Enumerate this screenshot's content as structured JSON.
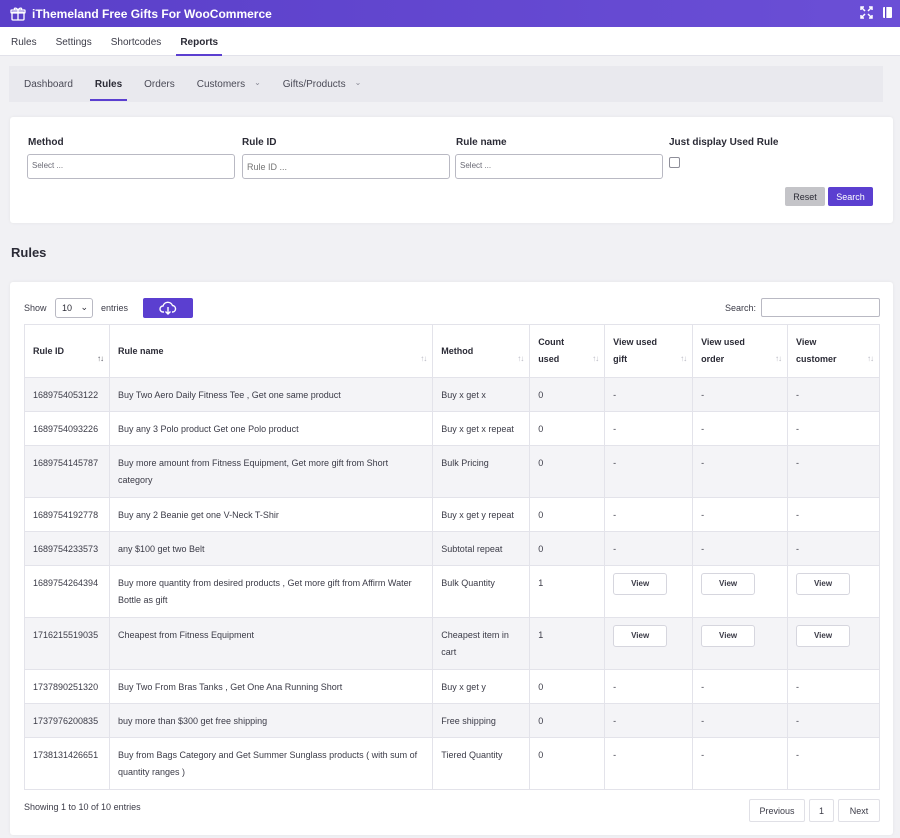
{
  "app": {
    "title": "iThemeland Free Gifts For WooCommerce"
  },
  "main_tabs": [
    {
      "label": "Rules"
    },
    {
      "label": "Settings"
    },
    {
      "label": "Shortcodes"
    },
    {
      "label": "Reports"
    }
  ],
  "sub_tabs": [
    {
      "label": "Dashboard"
    },
    {
      "label": "Rules"
    },
    {
      "label": "Orders"
    },
    {
      "label": "Customers"
    },
    {
      "label": "Gifts/Products"
    }
  ],
  "filters": {
    "method_label": "Method",
    "method_placeholder": "Select ...",
    "rule_id_label": "Rule ID",
    "rule_id_placeholder": "Rule ID ...",
    "rule_name_label": "Rule name",
    "rule_name_placeholder": "Select ...",
    "used_rule_label": "Just display Used Rule",
    "reset_label": "Reset",
    "search_label": "Search"
  },
  "section_title": "Rules",
  "table_controls": {
    "show_label": "Show",
    "page_length": "10",
    "entries_label": "entries",
    "search_label": "Search:"
  },
  "table": {
    "columns": [
      "Rule ID",
      "Rule name",
      "Method",
      "Count used",
      "View used gift",
      "View used order",
      "View customer"
    ],
    "rows": [
      {
        "id": "1689754053122",
        "name": "Buy Two Aero Daily Fitness Tee , Get one same product",
        "method": "Buy x get x",
        "count": "0",
        "gift": "-",
        "order": "-",
        "customer": "-"
      },
      {
        "id": "1689754093226",
        "name": "Buy any 3 Polo product Get one Polo product",
        "method": "Buy x get x repeat",
        "count": "0",
        "gift": "-",
        "order": "-",
        "customer": "-"
      },
      {
        "id": "1689754145787",
        "name": "Buy more amount from Fitness Equipment, Get more gift from Short category",
        "method": "Bulk Pricing",
        "count": "0",
        "gift": "-",
        "order": "-",
        "customer": "-"
      },
      {
        "id": "1689754192778",
        "name": "Buy any 2 Beanie get one V-Neck T-Shir",
        "method": "Buy x get y repeat",
        "count": "0",
        "gift": "-",
        "order": "-",
        "customer": "-"
      },
      {
        "id": "1689754233573",
        "name": "any $100 get two Belt",
        "method": "Subtotal repeat",
        "count": "0",
        "gift": "-",
        "order": "-",
        "customer": "-"
      },
      {
        "id": "1689754264394",
        "name": "Buy more quantity from desired products , Get more gift from Affirm Water Bottle as gift",
        "method": "Bulk Quantity",
        "count": "1",
        "gift": "View",
        "order": "View",
        "customer": "View"
      },
      {
        "id": "1716215519035",
        "name": "Cheapest from Fitness Equipment",
        "method": "Cheapest item in cart",
        "count": "1",
        "gift": "View",
        "order": "View",
        "customer": "View"
      },
      {
        "id": "1737890251320",
        "name": "Buy Two From Bras Tanks , Get One Ana Running Short",
        "method": "Buy x get y",
        "count": "0",
        "gift": "-",
        "order": "-",
        "customer": "-"
      },
      {
        "id": "1737976200835",
        "name": "buy more than $300 get free shipping",
        "method": "Free shipping",
        "count": "0",
        "gift": "-",
        "order": "-",
        "customer": "-"
      },
      {
        "id": "1738131426651",
        "name": "Buy from Bags Category and Get Summer Sunglass products ( with sum of quantity ranges )",
        "method": "Tiered Quantity",
        "count": "0",
        "gift": "-",
        "order": "-",
        "customer": "-"
      }
    ]
  },
  "footer": {
    "info": "Showing 1 to 10 of 10 entries",
    "previous": "Previous",
    "page": "1",
    "next": "Next"
  },
  "colors": {
    "accent": "#5b3fd0",
    "header_bg": "#5a3fc9"
  }
}
